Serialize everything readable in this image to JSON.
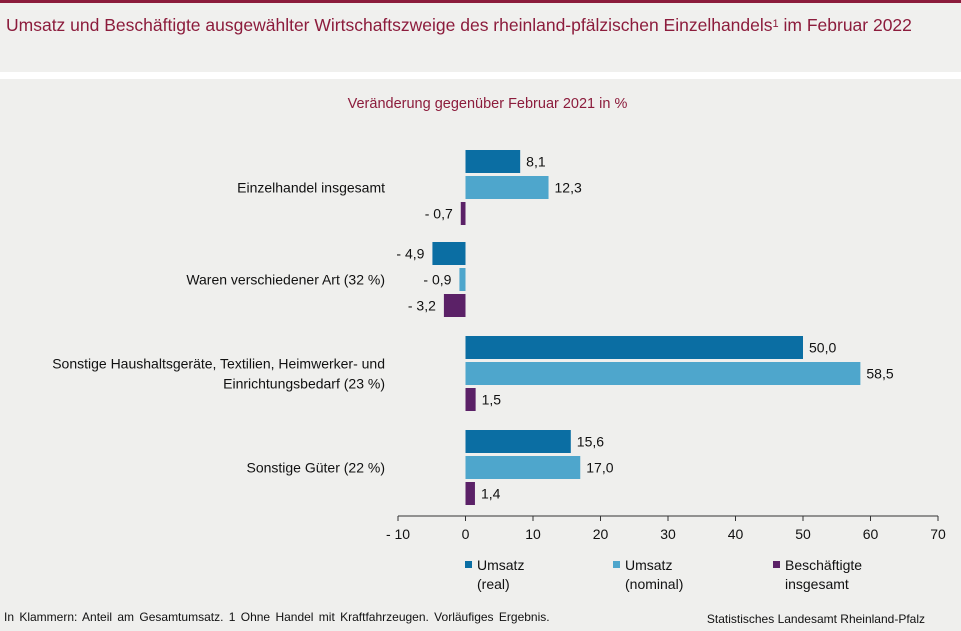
{
  "header": {
    "title_main": "Umsatz und Beschäftigte ausgewählter Wirtschaftszweige des rheinland-pfälzischen Einzelhandels",
    "title_sup": "1",
    "title_tail": " im Februar 2022"
  },
  "colors": {
    "umsatz_real": "#0b6ea3",
    "umsatz_nominal": "#4ea6cc",
    "beschaeftigte": "#5b2167",
    "title": "#8c1c3c",
    "panel_bg": "#efefed"
  },
  "chart_data": {
    "type": "bar",
    "orientation": "horizontal",
    "subtitle": "Veränderung gegenüber Februar 2021 in %",
    "categories": [
      [
        "Einzelhandel insgesamt"
      ],
      [
        "Waren verschiedener Art (32 %)"
      ],
      [
        "Sonstige Haushaltsgeräte, Textilien, Heimwerker- und",
        "Einrichtungsbedarf (23 %)"
      ],
      [
        "Sonstige Güter (22 %)"
      ]
    ],
    "series": [
      {
        "name": "Umsatz (real)",
        "values": [
          8.1,
          -4.9,
          50.0,
          15.6
        ],
        "labels": [
          "8,1",
          "- 4,9",
          "50,0",
          "15,6"
        ]
      },
      {
        "name": "Umsatz (nominal)",
        "values": [
          12.3,
          -0.9,
          58.5,
          17.0
        ],
        "labels": [
          "12,3",
          "- 0,9",
          "58,5",
          "17,0"
        ]
      },
      {
        "name": "Beschäftigte insgesamt",
        "values": [
          -0.7,
          -3.2,
          1.5,
          1.4
        ],
        "labels": [
          "- 0,7",
          "- 3,2",
          "1,5",
          "1,4"
        ]
      }
    ],
    "xlim": [
      -10,
      70
    ],
    "xticks": [
      -10,
      0,
      10,
      20,
      30,
      40,
      50,
      60,
      70
    ],
    "xtick_labels": [
      "- 10",
      "0",
      "10",
      "20",
      "30",
      "40",
      "50",
      "60",
      "70"
    ],
    "grid": false,
    "legend_position": "bottom"
  },
  "legend": [
    {
      "line1": "Umsatz",
      "line2": "(real)"
    },
    {
      "line1": "Umsatz",
      "line2": "(nominal)"
    },
    {
      "line1": "Beschäftigte",
      "line2": "insgesamt"
    }
  ],
  "footer": {
    "note": "In Klammern: Anteil am Gesamtumsatz. 1 Ohne Handel mit Kraftfahrzeugen. Vorläufiges Ergebnis.",
    "source": "Statistisches Landesamt Rheinland-Pfalz"
  }
}
